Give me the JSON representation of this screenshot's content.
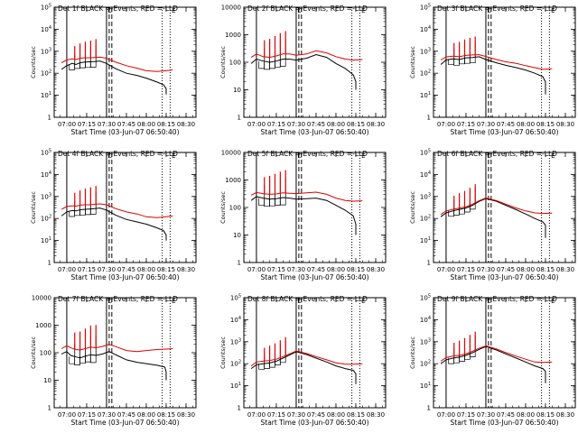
{
  "figure": {
    "start_time_label": "Start Time (03-Jun-07 06:50:40)",
    "ylabel": "Counts/sec",
    "x_ticks": [
      "07:00",
      "07:15",
      "07:30",
      "07:45",
      "08:00",
      "08:15",
      "08:30"
    ],
    "event_markers": {
      "D": "D",
      "E": "E"
    },
    "colors": {
      "events": "#000000",
      "lld": "#e00000",
      "background": "#ffffff"
    }
  },
  "chart_data": [
    {
      "type": "line",
      "title": "Det 1f  BLACK =-Events, RED =-LLD",
      "ylog": true,
      "ylim": [
        1,
        100000
      ],
      "y_ticks": [
        "1",
        "10^1",
        "10^2",
        "10^3",
        "10^4",
        "10^5"
      ],
      "decay_end": [
        1.1,
        1.4
      ],
      "vlines": [
        "07:00",
        "07:30",
        "07:32",
        "07:34",
        "08:12",
        "08:18"
      ],
      "series": [
        {
          "name": "Events",
          "x": [
            "06:56",
            "07:00",
            "07:04",
            "07:07",
            "07:10",
            "07:13",
            "07:17",
            "07:21",
            "07:25",
            "07:30",
            "07:37",
            "07:45",
            "07:53",
            "08:00",
            "08:08",
            "08:13",
            "08:15"
          ],
          "values": [
            150,
            220,
            280,
            250,
            300,
            320,
            330,
            340,
            360,
            280,
            160,
            100,
            80,
            60,
            40,
            30,
            20
          ]
        },
        {
          "name": "LLD",
          "x": [
            "06:56",
            "07:00",
            "07:04",
            "07:07",
            "07:10",
            "07:13",
            "07:17",
            "07:21",
            "07:25",
            "07:30",
            "07:37",
            "07:45",
            "07:53",
            "08:00",
            "08:08",
            "08:15",
            "08:20"
          ],
          "values": [
            300,
            400,
            450,
            420,
            480,
            500,
            500,
            520,
            540,
            480,
            320,
            220,
            170,
            130,
            120,
            130,
            140
          ]
        }
      ]
    },
    {
      "type": "line",
      "title": "Det 2f  BLACK =-Events, RED =-LLD",
      "ylog": true,
      "ylim": [
        1,
        10000
      ],
      "y_ticks": [
        "1",
        "10",
        "100",
        "1000",
        "10000"
      ],
      "decay_end": [
        1.0,
        1.2
      ],
      "vlines": [
        "07:00",
        "07:30",
        "07:32",
        "07:34",
        "08:12",
        "08:18"
      ],
      "series": [
        {
          "name": "Events",
          "x": [
            "06:56",
            "07:00",
            "07:05",
            "07:10",
            "07:15",
            "07:20",
            "07:25",
            "07:30",
            "07:38",
            "07:45",
            "07:53",
            "08:00",
            "08:07",
            "08:13",
            "08:15"
          ],
          "values": [
            90,
            130,
            110,
            100,
            110,
            130,
            130,
            120,
            140,
            190,
            150,
            90,
            60,
            35,
            20
          ]
        },
        {
          "name": "LLD",
          "x": [
            "06:56",
            "07:00",
            "07:05",
            "07:10",
            "07:15",
            "07:20",
            "07:25",
            "07:30",
            "07:38",
            "07:45",
            "07:53",
            "08:00",
            "08:07",
            "08:13",
            "08:20"
          ],
          "values": [
            150,
            200,
            160,
            150,
            170,
            200,
            200,
            180,
            200,
            260,
            220,
            160,
            130,
            120,
            125
          ]
        }
      ]
    },
    {
      "type": "line",
      "title": "Det 3f  BLACK =-Events, RED =-LLD",
      "ylog": true,
      "ylim": [
        1,
        100000
      ],
      "y_ticks": [
        "1",
        "10^1",
        "10^2",
        "10^3",
        "10^4",
        "10^5"
      ],
      "decay_end": [
        1.1,
        1.3
      ],
      "vlines": [
        "07:00",
        "07:30",
        "07:32",
        "07:34",
        "08:12",
        "08:18"
      ],
      "series": [
        {
          "name": "Events",
          "x": [
            "06:56",
            "07:00",
            "07:05",
            "07:10",
            "07:15",
            "07:20",
            "07:25",
            "07:30",
            "07:38",
            "07:45",
            "07:53",
            "08:00",
            "08:07",
            "08:13",
            "08:15"
          ],
          "values": [
            250,
            400,
            450,
            420,
            500,
            520,
            560,
            420,
            300,
            230,
            180,
            140,
            100,
            70,
            40
          ]
        },
        {
          "name": "LLD",
          "x": [
            "06:56",
            "07:00",
            "07:05",
            "07:10",
            "07:15",
            "07:20",
            "07:25",
            "07:30",
            "07:38",
            "07:45",
            "07:53",
            "08:00",
            "08:07",
            "08:13",
            "08:20"
          ],
          "values": [
            400,
            550,
            600,
            560,
            650,
            680,
            700,
            580,
            420,
            330,
            280,
            220,
            180,
            150,
            160
          ]
        }
      ]
    },
    {
      "type": "line",
      "title": "Det 4f  BLACK =-Events, RED =-LLD",
      "ylog": true,
      "ylim": [
        1,
        100000
      ],
      "y_ticks": [
        "1",
        "10^1",
        "10^2",
        "10^3",
        "10^4",
        "10^5"
      ],
      "decay_end": [
        1.0,
        1.3
      ],
      "vlines": [
        "07:00",
        "07:30",
        "07:32",
        "07:34",
        "08:12",
        "08:18"
      ],
      "series": [
        {
          "name": "Events",
          "x": [
            "06:56",
            "07:00",
            "07:04",
            "07:07",
            "07:10",
            "07:13",
            "07:17",
            "07:21",
            "07:25",
            "07:30",
            "07:37",
            "07:45",
            "07:53",
            "08:00",
            "08:08",
            "08:13",
            "08:15"
          ],
          "values": [
            130,
            200,
            230,
            220,
            250,
            260,
            270,
            280,
            300,
            240,
            140,
            90,
            70,
            55,
            38,
            28,
            18
          ]
        },
        {
          "name": "LLD",
          "x": [
            "06:56",
            "07:00",
            "07:04",
            "07:07",
            "07:10",
            "07:13",
            "07:17",
            "07:21",
            "07:25",
            "07:30",
            "07:37",
            "07:45",
            "07:53",
            "08:00",
            "08:08",
            "08:15",
            "08:20"
          ],
          "values": [
            260,
            350,
            380,
            360,
            400,
            420,
            420,
            440,
            460,
            420,
            280,
            200,
            160,
            120,
            110,
            120,
            130
          ]
        }
      ]
    },
    {
      "type": "line",
      "title": "Det 5f  BLACK =-Events, RED =-LLD",
      "ylog": true,
      "ylim": [
        1,
        10000
      ],
      "y_ticks": [
        "1",
        "10",
        "100",
        "1000",
        "10000"
      ],
      "decay_end": [
        1.0,
        1.2
      ],
      "vlines": [
        "07:00",
        "07:30",
        "07:32",
        "07:34",
        "08:12",
        "08:18"
      ],
      "series": [
        {
          "name": "Events",
          "x": [
            "06:56",
            "07:00",
            "07:05",
            "07:10",
            "07:15",
            "07:20",
            "07:25",
            "07:30",
            "07:38",
            "07:45",
            "07:53",
            "08:00",
            "08:07",
            "08:13",
            "08:15"
          ],
          "values": [
            180,
            250,
            220,
            200,
            210,
            230,
            220,
            200,
            210,
            220,
            180,
            120,
            80,
            50,
            25
          ]
        },
        {
          "name": "LLD",
          "x": [
            "06:56",
            "07:00",
            "07:05",
            "07:10",
            "07:15",
            "07:20",
            "07:25",
            "07:30",
            "07:38",
            "07:45",
            "07:53",
            "08:00",
            "08:07",
            "08:13",
            "08:20"
          ],
          "values": [
            280,
            350,
            320,
            300,
            310,
            340,
            330,
            320,
            340,
            360,
            300,
            220,
            180,
            170,
            175
          ]
        }
      ]
    },
    {
      "type": "line",
      "title": "Det 6f  BLACK =-Events, RED =-LLD",
      "ylog": true,
      "ylim": [
        1,
        100000
      ],
      "y_ticks": [
        "1",
        "10^1",
        "10^2",
        "10^3",
        "10^4",
        "10^5"
      ],
      "decay_end": [
        1.3,
        2.2
      ],
      "vlines": [
        "07:00",
        "07:30",
        "07:32",
        "07:34",
        "08:12",
        "08:18"
      ],
      "series": [
        {
          "name": "Events",
          "x": [
            "06:56",
            "07:00",
            "07:05",
            "07:10",
            "07:15",
            "07:20",
            "07:25",
            "07:30",
            "07:38",
            "07:45",
            "07:53",
            "08:00",
            "08:07",
            "08:13",
            "08:15"
          ],
          "values": [
            120,
            180,
            220,
            260,
            300,
            400,
            600,
            800,
            600,
            400,
            250,
            160,
            100,
            70,
            50
          ]
        },
        {
          "name": "LLD",
          "x": [
            "06:56",
            "07:00",
            "07:05",
            "07:10",
            "07:15",
            "07:20",
            "07:25",
            "07:30",
            "07:38",
            "07:45",
            "07:53",
            "08:00",
            "08:07",
            "08:13",
            "08:20"
          ],
          "values": [
            150,
            220,
            260,
            300,
            340,
            450,
            650,
            850,
            650,
            450,
            300,
            220,
            180,
            170,
            175
          ]
        }
      ]
    },
    {
      "type": "line",
      "title": "Det 7f  BLACK =-Events, RED =-LLD",
      "ylog": true,
      "ylim": [
        1,
        10000
      ],
      "y_ticks": [
        "1",
        "10",
        "100",
        "1000",
        "10000"
      ],
      "decay_end": [
        1.0,
        1.1
      ],
      "vlines": [
        "07:00",
        "07:30",
        "07:32",
        "07:34",
        "08:12",
        "08:18"
      ],
      "series": [
        {
          "name": "Events",
          "x": [
            "06:56",
            "07:00",
            "07:03",
            "07:07",
            "07:10",
            "07:14",
            "07:18",
            "07:22",
            "07:27",
            "07:32",
            "07:38",
            "07:45",
            "07:53",
            "08:00",
            "08:08",
            "08:14",
            "08:15"
          ],
          "values": [
            90,
            110,
            80,
            70,
            65,
            75,
            85,
            80,
            90,
            110,
            80,
            55,
            45,
            40,
            35,
            30,
            20
          ]
        },
        {
          "name": "LLD",
          "x": [
            "06:56",
            "07:00",
            "07:03",
            "07:07",
            "07:10",
            "07:14",
            "07:18",
            "07:22",
            "07:27",
            "07:32",
            "07:38",
            "07:45",
            "07:53",
            "08:00",
            "08:08",
            "08:15",
            "08:20"
          ],
          "values": [
            140,
            180,
            150,
            130,
            125,
            140,
            160,
            150,
            170,
            200,
            160,
            120,
            110,
            120,
            130,
            135,
            140
          ]
        }
      ]
    },
    {
      "type": "line",
      "title": "Det 8f  BLACK =-Events, RED =-LLD",
      "ylog": true,
      "ylim": [
        1,
        100000
      ],
      "y_ticks": [
        "1",
        "10^1",
        "10^2",
        "10^3",
        "10^4",
        "10^5"
      ],
      "decay_end": [
        1.2,
        1.6
      ],
      "vlines": [
        "07:00",
        "07:30",
        "07:32",
        "07:34",
        "08:12",
        "08:18"
      ],
      "series": [
        {
          "name": "Events",
          "x": [
            "06:56",
            "07:00",
            "07:05",
            "07:10",
            "07:15",
            "07:20",
            "07:25",
            "07:30",
            "07:38",
            "07:45",
            "07:53",
            "08:00",
            "08:07",
            "08:13",
            "08:15"
          ],
          "values": [
            60,
            90,
            100,
            110,
            130,
            180,
            250,
            350,
            260,
            180,
            120,
            80,
            60,
            50,
            35
          ]
        },
        {
          "name": "LLD",
          "x": [
            "06:56",
            "07:00",
            "07:05",
            "07:10",
            "07:15",
            "07:20",
            "07:25",
            "07:30",
            "07:38",
            "07:45",
            "07:53",
            "08:00",
            "08:07",
            "08:13",
            "08:20"
          ],
          "values": [
            80,
            120,
            130,
            140,
            160,
            210,
            280,
            380,
            290,
            210,
            150,
            110,
            95,
            95,
            100
          ]
        }
      ]
    },
    {
      "type": "line",
      "title": "Det 9f  BLACK =-Events, RED =-LLD",
      "ylog": true,
      "ylim": [
        1,
        100000
      ],
      "y_ticks": [
        "1",
        "10^1",
        "10^2",
        "10^3",
        "10^4",
        "10^5"
      ],
      "decay_end": [
        1.3,
        1.7
      ],
      "vlines": [
        "07:00",
        "07:30",
        "07:32",
        "07:34",
        "08:12",
        "08:18"
      ],
      "series": [
        {
          "name": "Events",
          "x": [
            "06:56",
            "07:00",
            "07:05",
            "07:10",
            "07:15",
            "07:20",
            "07:25",
            "07:30",
            "07:38",
            "07:45",
            "07:53",
            "08:00",
            "08:07",
            "08:13",
            "08:15"
          ],
          "values": [
            100,
            150,
            180,
            200,
            240,
            320,
            450,
            600,
            420,
            280,
            180,
            120,
            80,
            60,
            45
          ]
        },
        {
          "name": "LLD",
          "x": [
            "06:56",
            "07:00",
            "07:05",
            "07:10",
            "07:15",
            "07:20",
            "07:25",
            "07:30",
            "07:38",
            "07:45",
            "07:53",
            "08:00",
            "08:07",
            "08:13",
            "08:20"
          ],
          "values": [
            130,
            190,
            220,
            240,
            280,
            370,
            500,
            650,
            470,
            320,
            220,
            160,
            120,
            115,
            120
          ]
        }
      ]
    }
  ]
}
